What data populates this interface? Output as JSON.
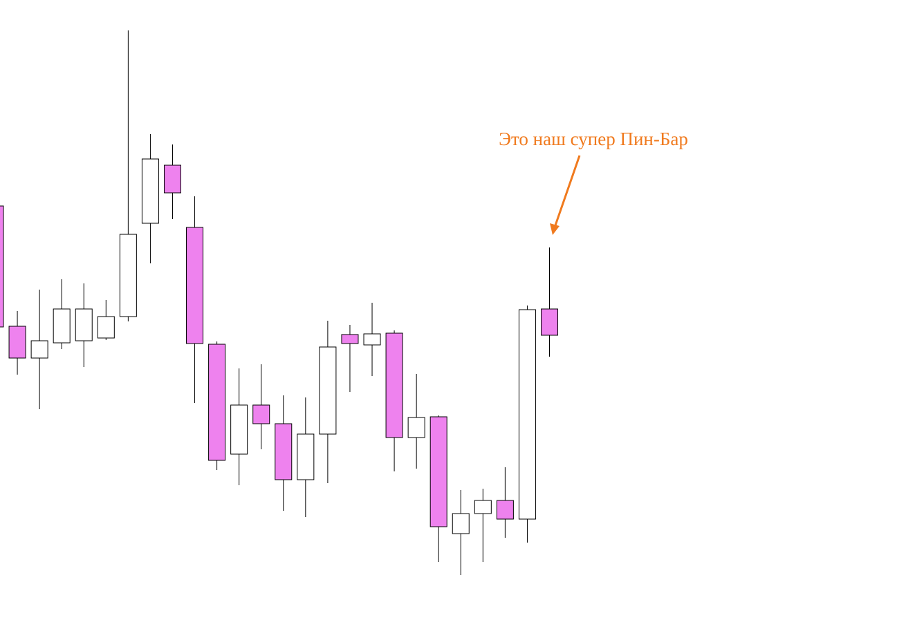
{
  "chart_data": {
    "type": "candlestick",
    "title": "",
    "xlabel": "",
    "ylabel": "",
    "ylim": [
      0,
      910
    ],
    "grid": false,
    "colors": {
      "bearish_fill": "#ee82ee",
      "bullish_fill": "#ffffff",
      "outline": "#000000",
      "annotation": "#f07a1e"
    },
    "candles": [
      {
        "open": 612,
        "high": 612,
        "low": 437,
        "close": 437
      },
      {
        "open": 438,
        "high": 460,
        "low": 368,
        "close": 392
      },
      {
        "open": 392,
        "high": 491,
        "low": 318,
        "close": 417
      },
      {
        "open": 414,
        "high": 506,
        "low": 405,
        "close": 463
      },
      {
        "open": 417,
        "high": 500,
        "low": 379,
        "close": 463
      },
      {
        "open": 421,
        "high": 476,
        "low": 418,
        "close": 452
      },
      {
        "open": 452,
        "high": 866,
        "low": 445,
        "close": 571
      },
      {
        "open": 587,
        "high": 716,
        "low": 529,
        "close": 680
      },
      {
        "open": 671,
        "high": 701,
        "low": 593,
        "close": 631
      },
      {
        "open": 581,
        "high": 626,
        "low": 327,
        "close": 413
      },
      {
        "open": 412,
        "high": 416,
        "low": 230,
        "close": 244
      },
      {
        "open": 253,
        "high": 377,
        "low": 208,
        "close": 324
      },
      {
        "open": 324,
        "high": 383,
        "low": 260,
        "close": 297
      },
      {
        "open": 297,
        "high": 338,
        "low": 171,
        "close": 216
      },
      {
        "open": 216,
        "high": 335,
        "low": 162,
        "close": 282
      },
      {
        "open": 282,
        "high": 446,
        "low": 211,
        "close": 408
      },
      {
        "open": 426,
        "high": 440,
        "low": 343,
        "close": 413
      },
      {
        "open": 411,
        "high": 472,
        "low": 366,
        "close": 427
      },
      {
        "open": 428,
        "high": 432,
        "low": 228,
        "close": 277
      },
      {
        "open": 277,
        "high": 369,
        "low": 232,
        "close": 306
      },
      {
        "open": 307,
        "high": 309,
        "low": 97,
        "close": 148
      },
      {
        "open": 138,
        "high": 201,
        "low": 78,
        "close": 167
      },
      {
        "open": 167,
        "high": 203,
        "low": 97,
        "close": 186
      },
      {
        "open": 186,
        "high": 234,
        "low": 132,
        "close": 159
      },
      {
        "open": 159,
        "high": 468,
        "low": 125,
        "close": 462
      },
      {
        "open": 463,
        "high": 552,
        "low": 394,
        "close": 425
      }
    ],
    "annotations": [
      {
        "text": "Это наш супер Пин-Бар",
        "points_to_candle": 25
      }
    ]
  }
}
